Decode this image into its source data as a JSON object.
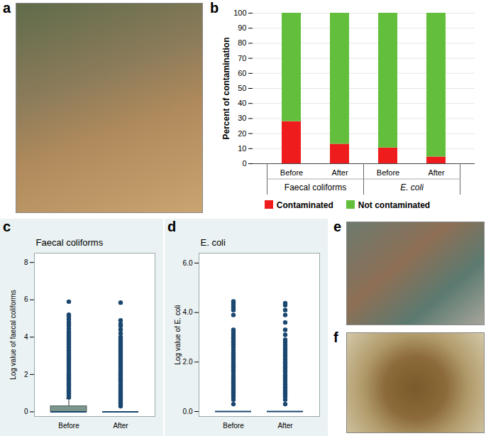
{
  "chart_data": [
    {
      "type": "photo",
      "panel_label": "a"
    },
    {
      "type": "bar",
      "panel_label": "b",
      "stacked": true,
      "ylabel": "Percent of contamination",
      "categories": [
        "Before",
        "After",
        "Before",
        "After"
      ],
      "group_labels": [
        "Faecal coliforms",
        "Faecal coliforms",
        "E. coli",
        "E. coli"
      ],
      "series": [
        {
          "name": "Contaminated",
          "color": "#ee1c1c",
          "values": [
            28,
            13,
            10.5,
            4.5
          ]
        },
        {
          "name": "Not contaminated",
          "color": "#63be3b",
          "values": [
            72,
            87,
            89.5,
            95.5
          ]
        }
      ],
      "ylim": [
        0,
        100
      ],
      "yticks": [
        0,
        10,
        20,
        30,
        40,
        50,
        60,
        70,
        80,
        90,
        100
      ],
      "grid": true,
      "legend": "bottom"
    },
    {
      "type": "box",
      "panel_label": "c",
      "title": "Faecal coliforms",
      "ylabel": "Log value of faecal coliforms",
      "categories": [
        "Before",
        "After"
      ],
      "color": "#1a476f",
      "boxes": [
        {
          "q1": 0,
          "median": 0,
          "q3": 0.3,
          "whisker_low": 0,
          "whisker_high": 0.7,
          "outliers": [
            0.78,
            0.85,
            0.95,
            1.0,
            1.08,
            1.15,
            1.2,
            1.3,
            1.38,
            1.45,
            1.5,
            1.6,
            1.7,
            1.78,
            1.85,
            1.95,
            2.0,
            2.1,
            2.2,
            2.3,
            2.4,
            2.48,
            2.6,
            2.7,
            2.78,
            2.85,
            2.95,
            3.0,
            3.1,
            3.2,
            3.3,
            3.4,
            3.48,
            3.6,
            3.7,
            3.78,
            3.9,
            4.0,
            4.1,
            4.2,
            4.3,
            4.45,
            4.6,
            4.7,
            4.8,
            4.95,
            5.1,
            5.2,
            5.9
          ]
        },
        {
          "q1": 0,
          "median": 0,
          "q3": 0,
          "whisker_low": 0,
          "whisker_high": 0,
          "outliers": [
            0.3,
            0.4,
            0.48,
            0.6,
            0.7,
            0.78,
            0.85,
            0.95,
            1.0,
            1.1,
            1.2,
            1.3,
            1.4,
            1.48,
            1.6,
            1.7,
            1.78,
            1.85,
            1.95,
            2.0,
            2.1,
            2.2,
            2.3,
            2.4,
            2.5,
            2.6,
            2.7,
            2.8,
            2.9,
            3.0,
            3.1,
            3.2,
            3.3,
            3.4,
            3.5,
            3.6,
            3.7,
            3.8,
            3.9,
            4.0,
            4.2,
            4.4,
            4.6,
            4.7,
            4.9,
            5.85
          ]
        }
      ],
      "ylim": [
        -0.25,
        8.5
      ],
      "yticks": [
        0,
        2,
        4,
        6,
        8
      ]
    },
    {
      "type": "box",
      "panel_label": "d",
      "title": "E. coli",
      "ylabel": "Log value of E. coli",
      "categories": [
        "Before",
        "After"
      ],
      "color": "#1a476f",
      "boxes": [
        {
          "q1": 0,
          "median": 0,
          "q3": 0,
          "whisker_low": 0,
          "whisker_high": 0,
          "outliers": [
            0.3,
            0.48,
            0.6,
            0.7,
            0.78,
            0.85,
            0.9,
            1.0,
            1.08,
            1.15,
            1.2,
            1.3,
            1.38,
            1.48,
            1.6,
            1.7,
            1.78,
            1.85,
            1.9,
            2.0,
            2.08,
            2.15,
            2.2,
            2.3,
            2.38,
            2.48,
            2.6,
            2.7,
            2.78,
            2.85,
            2.95,
            3.0,
            3.1,
            3.2,
            3.3,
            3.9,
            4.1,
            4.2,
            4.3,
            4.38,
            4.45
          ]
        },
        {
          "q1": 0,
          "median": 0,
          "q3": 0,
          "whisker_low": 0,
          "whisker_high": 0,
          "outliers": [
            0.3,
            0.48,
            0.6,
            0.7,
            0.78,
            0.85,
            0.95,
            1.0,
            1.1,
            1.2,
            1.3,
            1.4,
            1.48,
            1.6,
            1.7,
            1.78,
            1.85,
            1.95,
            2.0,
            2.1,
            2.2,
            2.3,
            2.4,
            2.5,
            2.6,
            2.7,
            2.8,
            2.9,
            3.1,
            3.3,
            3.6,
            3.9,
            4.1,
            4.3,
            4.38
          ]
        }
      ],
      "ylim": [
        -0.2,
        6.4
      ],
      "yticks": [
        0,
        2,
        4,
        6
      ]
    },
    {
      "type": "photo",
      "panel_label": "e"
    },
    {
      "type": "photo",
      "panel_label": "f"
    }
  ]
}
